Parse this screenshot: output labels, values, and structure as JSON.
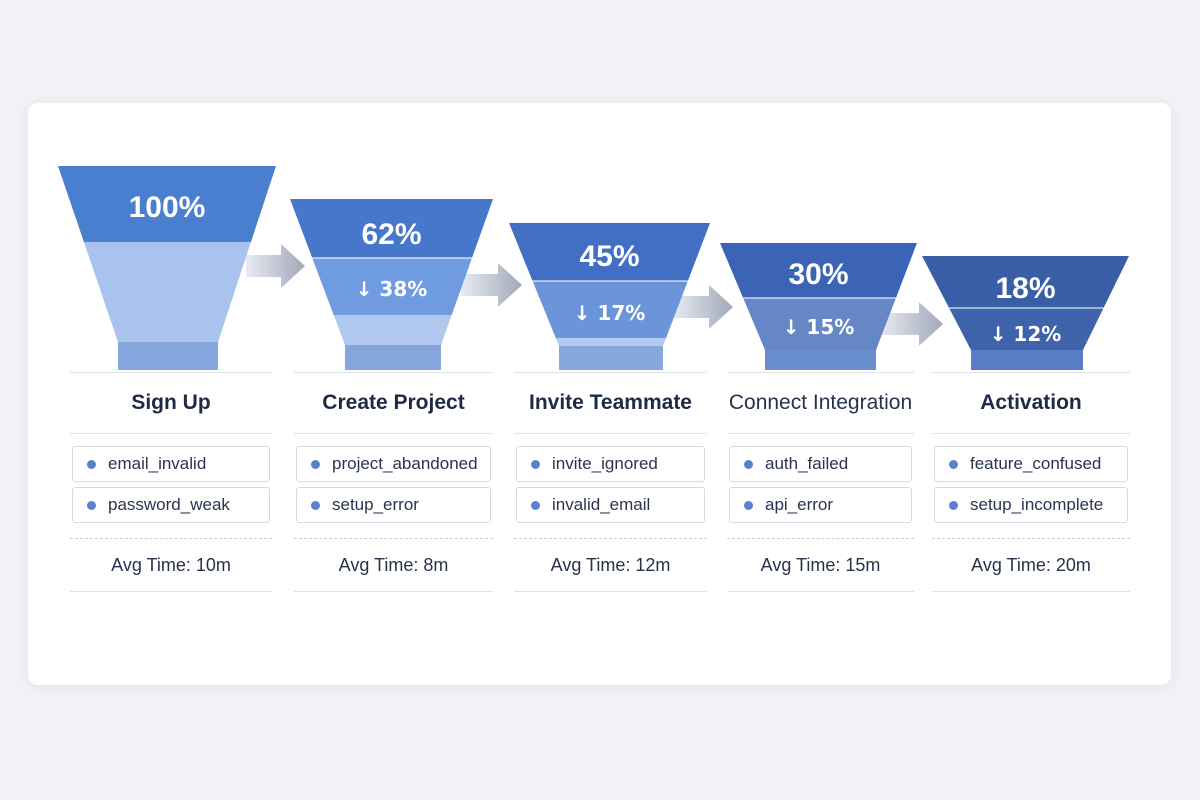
{
  "stages": [
    {
      "name": "Sign Up",
      "conversion": "100%",
      "dropoff": "",
      "reasons": [
        "email_invalid",
        "password_weak"
      ],
      "avg_time": "Avg Time: 10m"
    },
    {
      "name": "Create Project",
      "conversion": "62%",
      "dropoff": "↓ 38%",
      "reasons": [
        "project_abandoned",
        "setup_error"
      ],
      "avg_time": "Avg Time: 8m"
    },
    {
      "name": "Invite Teammate",
      "conversion": "45%",
      "dropoff": "↓ 17%",
      "reasons": [
        "invite_ignored",
        "invalid_email"
      ],
      "avg_time": "Avg Time: 12m"
    },
    {
      "name": "Connect Integration",
      "conversion": "30%",
      "dropoff": "↓ 15%",
      "reasons": [
        "auth_failed",
        "api_error"
      ],
      "avg_time": "Avg Time: 15m"
    },
    {
      "name": "Activation",
      "conversion": "18%",
      "dropoff": "↓ 12%",
      "reasons": [
        "feature_confused",
        "setup_incomplete"
      ],
      "avg_time": "Avg Time: 20m"
    }
  ],
  "colors": {
    "stage_top": [
      "#4a7fcf",
      "#4677cb",
      "#416fc4",
      "#3b64b7",
      "#3a5da7"
    ],
    "dropoff_band": [
      "#a9c3ec",
      "#6f9be0",
      "#6a95d8",
      "#6687c5",
      "#3f63ab"
    ],
    "lower_body": [
      "#aac4ee",
      "#b0c8ee",
      "#b3caee",
      "#86a4d8",
      "#5478c1"
    ],
    "base": [
      "#85a6dc",
      "#86a6db",
      "#87a7dc",
      "#6a8dd0",
      "#5a7cc5"
    ],
    "arrow": "#a0a8b8"
  }
}
